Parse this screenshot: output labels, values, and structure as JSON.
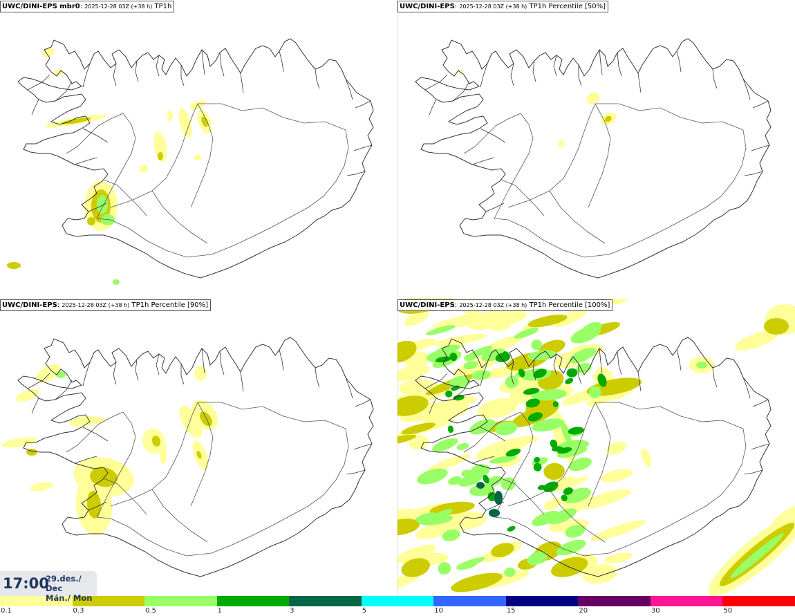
{
  "panels": [
    {
      "model": "UWC/DINI-EPS mbr0",
      "run": "2025-12-28 03Z (+38 h)",
      "field": "TP1h"
    },
    {
      "model": "UWC/DINI-EPS",
      "run": "2025-12-28 03Z (+38 h)",
      "field": "TP1h Percentile [50%]"
    },
    {
      "model": "UWC/DINI-EPS",
      "run": "2025-12-28 03Z (+38 h)",
      "field": "TP1h Percentile [90%]"
    },
    {
      "model": "UWC/DINI-EPS",
      "run": "2025-12-28 03Z (+38 h)",
      "field": "TP1h Percentile [100%]"
    }
  ],
  "valid_time": {
    "time": "17:00",
    "date_line": "29.des./ Dec",
    "day_line": "Mán./ Mon"
  },
  "legend": {
    "labels": [
      "0.1",
      "0.3",
      "0.5",
      "1",
      "3",
      "5",
      "10",
      "15",
      "20",
      "30",
      "50"
    ],
    "colors": [
      "#ffff99",
      "#cccc00",
      "#99ff66",
      "#00aa00",
      "#006644",
      "#00ffff",
      "#3366ff",
      "#000080",
      "#660066",
      "#ff1493",
      "#ff0000"
    ]
  },
  "map": {
    "region": "Iceland",
    "outline_color": "#333333",
    "road_color": "#555555"
  }
}
